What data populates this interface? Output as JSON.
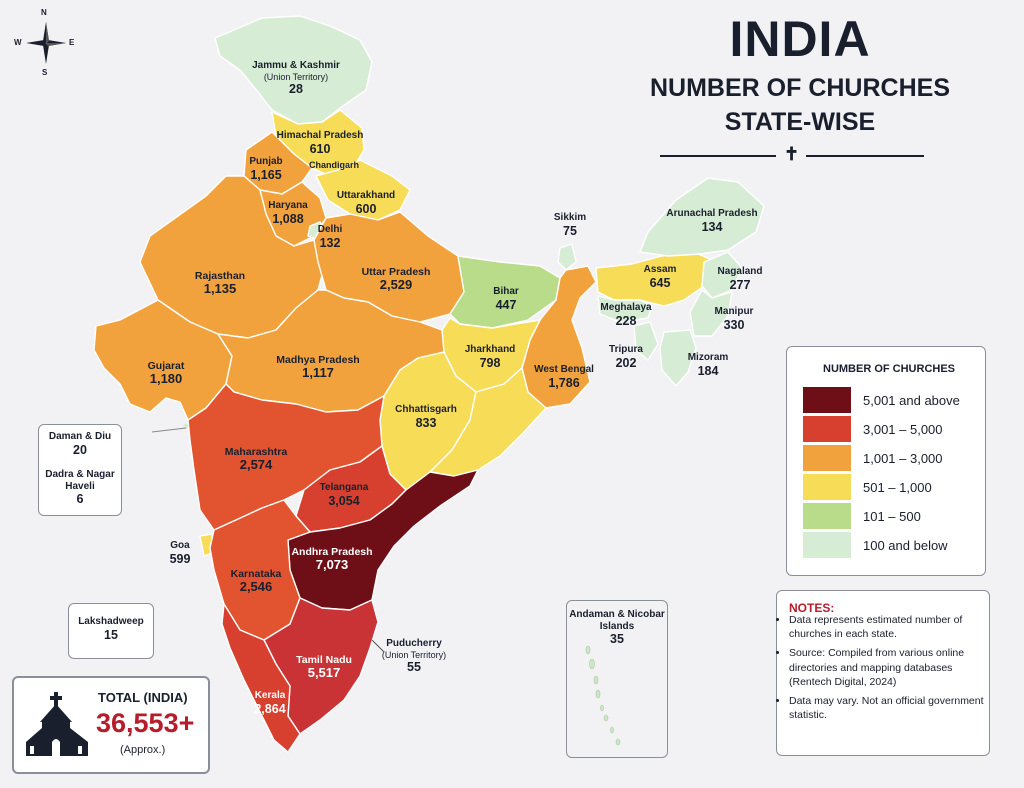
{
  "title": {
    "line1": "INDIA",
    "line2": "NUMBER OF CHURCHES",
    "line3": "STATE-WISE",
    "ornament": "✝"
  },
  "compass": {
    "n": "N",
    "s": "S",
    "e": "E",
    "w": "W"
  },
  "colors": {
    "c5001": "#6e0f18",
    "c3001": "#d7402f",
    "c1001": "#f2a23c",
    "c501": "#f7dc58",
    "c101": "#b8dc8a",
    "c100": "#d7ecd5",
    "border": "#ffffff"
  },
  "states": {
    "jk": {
      "name": "Jammu & Kashmir",
      "sub": "(Union Territory)",
      "value": "28"
    },
    "hp": {
      "name": "Himachal Pradesh",
      "value": "610"
    },
    "chandigarh": {
      "name": "Chandigarh"
    },
    "punjab": {
      "name": "Punjab",
      "value": "1,165"
    },
    "uttarakhand": {
      "name": "Uttarakhand",
      "value": "600"
    },
    "haryana": {
      "name": "Haryana",
      "value": "1,088"
    },
    "delhi": {
      "name": "Delhi",
      "value": "132"
    },
    "rajasthan": {
      "name": "Rajasthan",
      "value": "1,135"
    },
    "up": {
      "name": "Uttar Pradesh",
      "value": "2,529"
    },
    "bihar": {
      "name": "Bihar",
      "value": "447"
    },
    "sikkim": {
      "name": "Sikkim",
      "value": "75"
    },
    "arunachal": {
      "name": "Arunachal Pradesh",
      "value": "134"
    },
    "assam": {
      "name": "Assam",
      "value": "645"
    },
    "nagaland": {
      "name": "Nagaland",
      "value": "277"
    },
    "meghalaya": {
      "name": "Meghalaya",
      "value": "228"
    },
    "manipur": {
      "name": "Manipur",
      "value": "330"
    },
    "tripura": {
      "name": "Tripura",
      "value": "202"
    },
    "mizoram": {
      "name": "Mizoram",
      "value": "184"
    },
    "gujarat": {
      "name": "Gujarat",
      "value": "1,180"
    },
    "mp": {
      "name": "Madhya Pradesh",
      "value": "1,117"
    },
    "jharkhand": {
      "name": "Jharkhand",
      "value": "798"
    },
    "wb": {
      "name": "West Bengal",
      "value": "1,786"
    },
    "chhattisgarh": {
      "name": "Chhattisgarh",
      "value": "833"
    },
    "maharashtra": {
      "name": "Maharashtra",
      "value": "2,574"
    },
    "telangana": {
      "name": "Telangana",
      "value": "3,054"
    },
    "ap": {
      "name": "Andhra Pradesh",
      "value": "7,073"
    },
    "goa": {
      "name": "Goa",
      "value": "599"
    },
    "karnataka": {
      "name": "Karnataka",
      "value": "2,546"
    },
    "tn": {
      "name": "Tamil Nadu",
      "value": "5,517"
    },
    "kerala": {
      "name": "Kerala",
      "value": "2,864"
    },
    "puducherry": {
      "name": "Puducherry",
      "sub": "(Union Territory)",
      "value": "55"
    },
    "daman": {
      "name": "Daman & Diu",
      "value": "20"
    },
    "dadra": {
      "name": "Dadra & Nagar Haveli",
      "value": "6"
    },
    "lakshadweep": {
      "name": "Lakshadweep",
      "value": "15"
    },
    "andaman": {
      "name": "Andaman & Nicobar Islands",
      "value": "35"
    }
  },
  "legend": {
    "title": "NUMBER OF CHURCHES",
    "items": [
      {
        "label": "5,001 and above",
        "color": "#6e0f18"
      },
      {
        "label": "3,001 – 5,000",
        "color": "#d7402f"
      },
      {
        "label": "1,001 – 3,000",
        "color": "#f2a23c"
      },
      {
        "label": "501 – 1,000",
        "color": "#f7dc58"
      },
      {
        "label": "101 – 500",
        "color": "#b8dc8a"
      },
      {
        "label": "100 and below",
        "color": "#d7ecd5"
      }
    ]
  },
  "notes": {
    "title": "NOTES:",
    "items": [
      "Data represents estimated number of churches in each state.",
      "Source: Compiled from various online directories and mapping databases (Rentech Digital, 2024)",
      "Data may vary. Not an official government statistic."
    ]
  },
  "total": {
    "label": "TOTAL (INDIA)",
    "value": "36,553+",
    "note": "(Approx.)"
  }
}
